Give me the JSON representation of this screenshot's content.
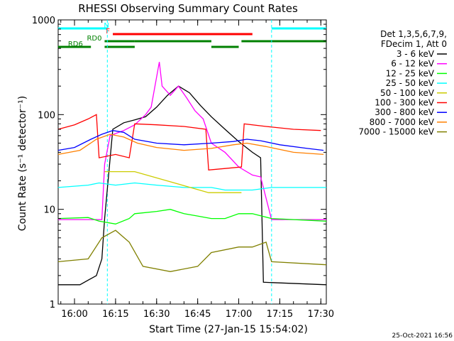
{
  "chart_data": {
    "type": "line",
    "title": "RHESSI Observing Summary Count Rates",
    "xlabel": "Start Time (27-Jan-15 15:54:02)",
    "ylabel": "Count Rate (s⁻¹ detector⁻¹)",
    "y_scale": "log",
    "ylim": [
      1,
      1000
    ],
    "xlim": [
      "15:54:02",
      "17:32:00"
    ],
    "x_ticks": [
      "16:00",
      "16:15",
      "16:30",
      "16:45",
      "17:00",
      "17:15",
      "17:30"
    ],
    "y_ticks": [
      "1",
      "10",
      "100",
      "1000"
    ],
    "legend_header": [
      "Det 1,3,5,6,7,9,",
      "FDecim 1, Att 0"
    ],
    "legend_position": "right",
    "footer": "25-Oct-2021 16:56",
    "flag_bars": [
      {
        "label": "N",
        "color": "#00ffff",
        "segments": [
          [
            "15:54",
            "16:12"
          ],
          [
            "17:12",
            "17:32"
          ]
        ]
      },
      {
        "label": "F",
        "color": "#ff0000",
        "segments": [
          [
            "16:14",
            "17:05"
          ]
        ]
      },
      {
        "label": "RD0",
        "color": "#008000",
        "segments": [
          [
            "16:11",
            "16:22"
          ],
          [
            "16:22",
            "16:50"
          ],
          [
            "17:01",
            "17:32"
          ]
        ]
      },
      {
        "label": "RD6",
        "color": "#008000",
        "segments": [
          [
            "15:54",
            "16:06"
          ],
          [
            "16:11",
            "16:22"
          ],
          [
            "16:50",
            "17:00"
          ]
        ]
      }
    ],
    "series": [
      {
        "name": "3 - 6 keV",
        "color": "#000000",
        "points": [
          [
            "15:54",
            1.6
          ],
          [
            "16:02",
            1.6
          ],
          [
            "16:08",
            2.0
          ],
          [
            "16:10",
            3.0
          ],
          [
            "16:11",
            8
          ],
          [
            "16:14",
            70
          ],
          [
            "16:18",
            82
          ],
          [
            "16:22",
            88
          ],
          [
            "16:26",
            95
          ],
          [
            "16:30",
            120
          ],
          [
            "16:34",
            160
          ],
          [
            "16:38",
            200
          ],
          [
            "16:42",
            170
          ],
          [
            "16:46",
            125
          ],
          [
            "16:50",
            95
          ],
          [
            "16:55",
            70
          ],
          [
            "17:00",
            52
          ],
          [
            "17:05",
            40
          ],
          [
            "17:08",
            35
          ],
          [
            "17:09",
            1.7
          ],
          [
            "17:32",
            1.6
          ]
        ]
      },
      {
        "name": "6 - 12 keV",
        "color": "#ff00ff",
        "points": [
          [
            "15:54",
            7.8
          ],
          [
            "16:10",
            7.8
          ],
          [
            "16:11",
            30
          ],
          [
            "16:13",
            60
          ],
          [
            "16:18",
            68
          ],
          [
            "16:22",
            78
          ],
          [
            "16:26",
            100
          ],
          [
            "16:28",
            120
          ],
          [
            "16:31",
            360
          ],
          [
            "16:32",
            200
          ],
          [
            "16:35",
            160
          ],
          [
            "16:38",
            200
          ],
          [
            "16:41",
            150
          ],
          [
            "16:44",
            110
          ],
          [
            "16:47",
            90
          ],
          [
            "16:50",
            50
          ],
          [
            "16:55",
            40
          ],
          [
            "17:00",
            28
          ],
          [
            "17:05",
            23
          ],
          [
            "17:08",
            22
          ],
          [
            "17:12",
            7.8
          ],
          [
            "17:32",
            7.8
          ]
        ]
      },
      {
        "name": "12 - 25 keV",
        "color": "#00ff00",
        "points": [
          [
            "15:54",
            8
          ],
          [
            "16:05",
            8.2
          ],
          [
            "16:09",
            7.5
          ],
          [
            "16:15",
            7
          ],
          [
            "16:20",
            8
          ],
          [
            "16:22",
            9
          ],
          [
            "16:30",
            9.5
          ],
          [
            "16:35",
            10
          ],
          [
            "16:40",
            9
          ],
          [
            "16:45",
            8.5
          ],
          [
            "16:50",
            8
          ],
          [
            "16:55",
            8
          ],
          [
            "17:00",
            9
          ],
          [
            "17:05",
            9
          ],
          [
            "17:12",
            8
          ],
          [
            "17:32",
            7.5
          ]
        ]
      },
      {
        "name": "25 - 50 keV",
        "color": "#00ffff",
        "points": [
          [
            "15:54",
            17
          ],
          [
            "16:05",
            18
          ],
          [
            "16:09",
            19
          ],
          [
            "16:15",
            18
          ],
          [
            "16:22",
            19
          ],
          [
            "16:30",
            18
          ],
          [
            "16:40",
            17
          ],
          [
            "16:50",
            17
          ],
          [
            "16:55",
            16
          ],
          [
            "17:00",
            16
          ],
          [
            "17:05",
            16
          ],
          [
            "17:12",
            17
          ],
          [
            "17:32",
            17
          ]
        ]
      },
      {
        "name": "50 - 100 keV",
        "color": "#cccc00",
        "points": [
          [
            "16:11",
            25
          ],
          [
            "16:22",
            25
          ],
          [
            "16:49",
            15
          ],
          [
            "17:01",
            15
          ]
        ]
      },
      {
        "name": "100 - 300 keV",
        "color": "#ff0000",
        "points": [
          [
            "15:54",
            70
          ],
          [
            "16:00",
            78
          ],
          [
            "16:05",
            90
          ],
          [
            "16:08",
            100
          ],
          [
            "16:09",
            35
          ],
          [
            "16:15",
            38
          ],
          [
            "16:20",
            35
          ],
          [
            "16:22",
            80
          ],
          [
            "16:30",
            78
          ],
          [
            "16:40",
            75
          ],
          [
            "16:48",
            70
          ],
          [
            "16:49",
            26
          ],
          [
            "16:55",
            27
          ],
          [
            "17:01",
            28
          ],
          [
            "17:02",
            80
          ],
          [
            "17:10",
            75
          ],
          [
            "17:20",
            70
          ],
          [
            "17:30",
            68
          ]
        ]
      },
      {
        "name": "300 - 800 keV",
        "color": "#0000ff",
        "points": [
          [
            "15:54",
            42
          ],
          [
            "16:00",
            45
          ],
          [
            "16:06",
            55
          ],
          [
            "16:10",
            62
          ],
          [
            "16:14",
            68
          ],
          [
            "16:18",
            65
          ],
          [
            "16:22",
            55
          ],
          [
            "16:30",
            50
          ],
          [
            "16:40",
            48
          ],
          [
            "16:50",
            50
          ],
          [
            "16:58",
            52
          ],
          [
            "17:03",
            55
          ],
          [
            "17:08",
            53
          ],
          [
            "17:15",
            48
          ],
          [
            "17:25",
            44
          ],
          [
            "17:31",
            42
          ]
        ]
      },
      {
        "name": "800 - 7000 keV",
        "color": "#ff8000",
        "points": [
          [
            "15:54",
            38
          ],
          [
            "16:02",
            42
          ],
          [
            "16:08",
            55
          ],
          [
            "16:13",
            62
          ],
          [
            "16:18",
            58
          ],
          [
            "16:23",
            50
          ],
          [
            "16:30",
            45
          ],
          [
            "16:40",
            42
          ],
          [
            "16:50",
            44
          ],
          [
            "16:58",
            48
          ],
          [
            "17:03",
            50
          ],
          [
            "17:10",
            46
          ],
          [
            "17:20",
            40
          ],
          [
            "17:31",
            38
          ]
        ]
      },
      {
        "name": "7000 - 15000 keV",
        "color": "#808000",
        "points": [
          [
            "15:54",
            2.8
          ],
          [
            "16:05",
            3.0
          ],
          [
            "16:10",
            5
          ],
          [
            "16:15",
            6
          ],
          [
            "16:20",
            4.5
          ],
          [
            "16:25",
            2.5
          ],
          [
            "16:35",
            2.2
          ],
          [
            "16:45",
            2.5
          ],
          [
            "16:50",
            3.5
          ],
          [
            "17:00",
            4
          ],
          [
            "17:05",
            4
          ],
          [
            "17:10",
            4.5
          ],
          [
            "17:12",
            2.8
          ],
          [
            "17:32",
            2.6
          ]
        ]
      }
    ]
  }
}
